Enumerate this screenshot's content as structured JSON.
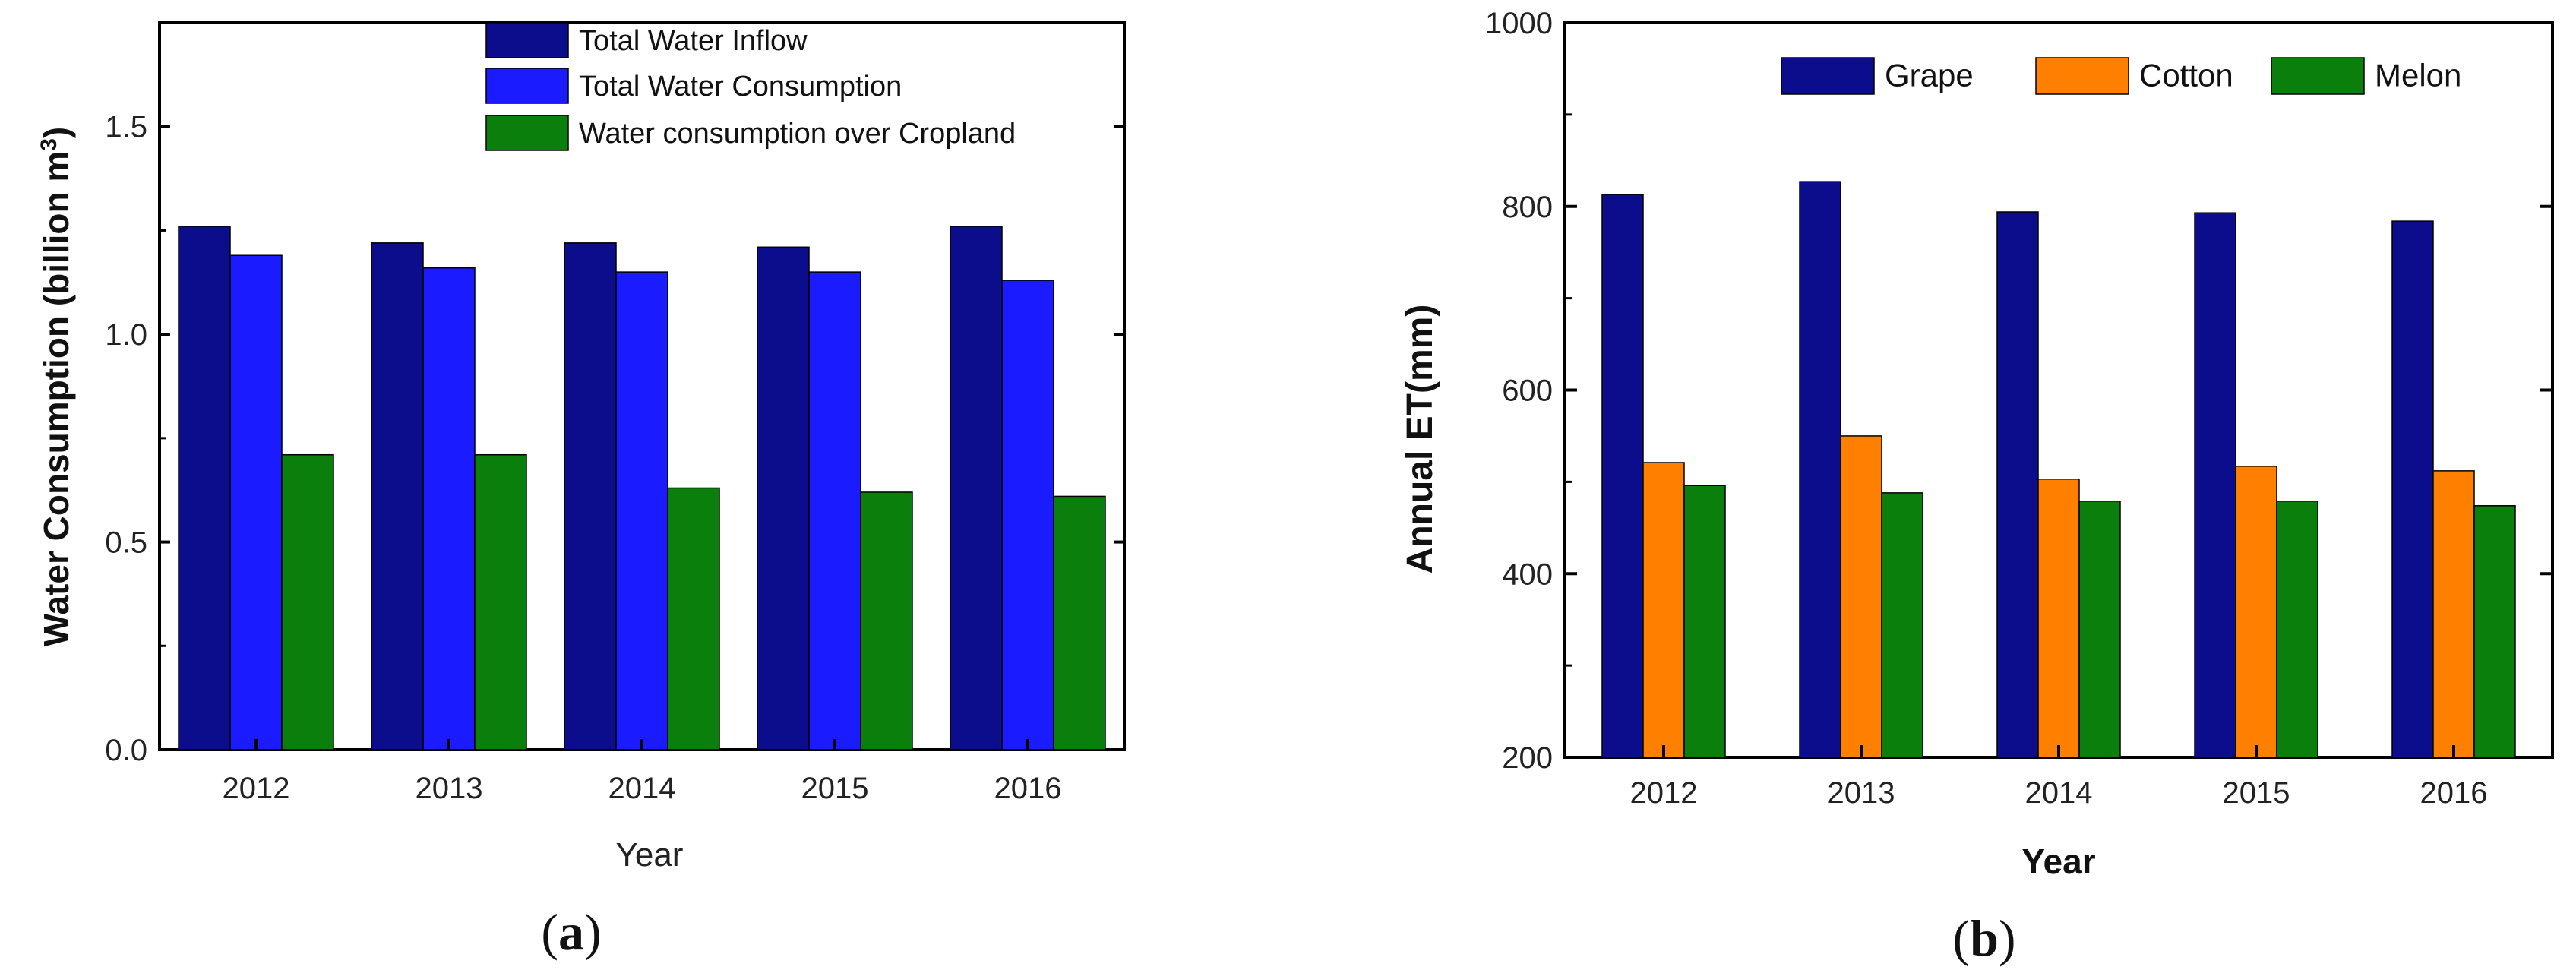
{
  "chart_data": [
    {
      "type": "bar",
      "panel_label": "a",
      "title": "",
      "xlabel": "Year",
      "ylabel": "Water Consumption (billion m",
      "ylabel_superscript": "3",
      "ylabel_close": ")",
      "categories": [
        "2012",
        "2013",
        "2014",
        "2015",
        "2016"
      ],
      "ylim": [
        0,
        1.75
      ],
      "yticks": [
        0.0,
        0.5,
        1.0,
        1.5
      ],
      "ytick_labels": [
        "0.0",
        "0.5",
        "1.0",
        "1.5"
      ],
      "legend_position": "top-right",
      "series": [
        {
          "name": "Total Water Inflow",
          "color": "#0b0d8c",
          "values": [
            1.26,
            1.22,
            1.22,
            1.21,
            1.26
          ]
        },
        {
          "name": "Total Water Consumption",
          "color": "#1b1bff",
          "values": [
            1.19,
            1.16,
            1.15,
            1.15,
            1.13
          ]
        },
        {
          "name": "Water consumption over Cropland",
          "color": "#0b7f0b",
          "values": [
            0.71,
            0.71,
            0.63,
            0.62,
            0.61
          ]
        }
      ]
    },
    {
      "type": "bar",
      "panel_label": "b",
      "title": "",
      "xlabel": "Year",
      "ylabel": "Annual ET(mm)",
      "categories": [
        "2012",
        "2013",
        "2014",
        "2015",
        "2016"
      ],
      "ylim": [
        200,
        1000
      ],
      "yticks": [
        200,
        400,
        600,
        800,
        1000
      ],
      "ytick_labels": [
        "200",
        "400",
        "600",
        "800",
        "1000"
      ],
      "legend_position": "top-right",
      "series": [
        {
          "name": "Grape",
          "color": "#0b0d8c",
          "values": [
            813,
            827,
            794,
            793,
            784
          ]
        },
        {
          "name": "Cotton",
          "color": "#ff8000",
          "values": [
            521,
            550,
            503,
            517,
            512
          ]
        },
        {
          "name": "Melon",
          "color": "#0b7f0b",
          "values": [
            496,
            488,
            479,
            479,
            474
          ]
        }
      ]
    }
  ]
}
